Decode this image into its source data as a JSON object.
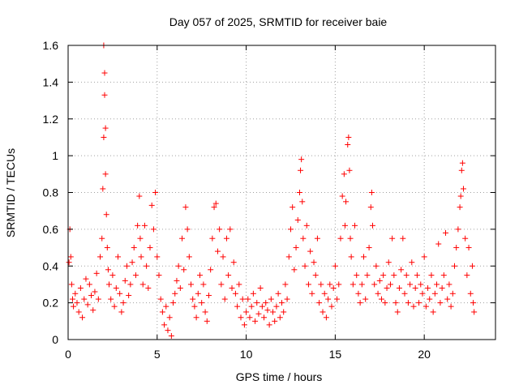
{
  "chart_data": {
    "type": "scatter",
    "title": "Day 057 of 2025, SRMTID for receiver baie",
    "xlabel": "GPS time / hours",
    "ylabel": "SRMTID / TECUs",
    "xlim": [
      0,
      24
    ],
    "ylim": [
      0,
      1.6
    ],
    "x_ticks": [
      0,
      5,
      10,
      15,
      20
    ],
    "x_tick_labels": [
      "0",
      "5",
      "10",
      "15",
      "20"
    ],
    "y_ticks": [
      0,
      0.2,
      0.4,
      0.6,
      0.8,
      1.0,
      1.2,
      1.4,
      1.6
    ],
    "y_tick_labels": [
      "0",
      "0.2",
      "0.4",
      "0.6",
      "0.8",
      "1",
      "1.2",
      "1.4",
      "1.6"
    ],
    "grid": true,
    "marker": "+",
    "color": "#ff0000",
    "series": [
      {
        "name": "SRMTID",
        "points": [
          [
            0.05,
            0.42
          ],
          [
            0.1,
            0.6
          ],
          [
            0.15,
            0.45
          ],
          [
            0.2,
            0.3
          ],
          [
            0.25,
            0.22
          ],
          [
            0.3,
            0.18
          ],
          [
            0.4,
            0.25
          ],
          [
            0.5,
            0.2
          ],
          [
            0.6,
            0.15
          ],
          [
            0.7,
            0.28
          ],
          [
            0.8,
            0.12
          ],
          [
            0.9,
            0.22
          ],
          [
            1.0,
            0.33
          ],
          [
            1.1,
            0.19
          ],
          [
            1.2,
            0.3
          ],
          [
            1.3,
            0.24
          ],
          [
            1.4,
            0.16
          ],
          [
            1.5,
            0.26
          ],
          [
            1.6,
            0.36
          ],
          [
            1.7,
            0.22
          ],
          [
            1.8,
            0.45
          ],
          [
            1.9,
            0.55
          ],
          [
            1.95,
            0.82
          ],
          [
            2.0,
            1.1
          ],
          [
            2.0,
            1.6
          ],
          [
            2.05,
            1.45
          ],
          [
            2.05,
            1.33
          ],
          [
            2.1,
            1.15
          ],
          [
            2.1,
            0.9
          ],
          [
            2.15,
            0.68
          ],
          [
            2.2,
            0.5
          ],
          [
            2.25,
            0.38
          ],
          [
            2.3,
            0.3
          ],
          [
            2.4,
            0.22
          ],
          [
            2.5,
            0.35
          ],
          [
            2.6,
            0.18
          ],
          [
            2.7,
            0.28
          ],
          [
            2.8,
            0.45
          ],
          [
            2.9,
            0.25
          ],
          [
            3.0,
            0.15
          ],
          [
            3.1,
            0.2
          ],
          [
            3.2,
            0.32
          ],
          [
            3.3,
            0.4
          ],
          [
            3.4,
            0.24
          ],
          [
            3.5,
            0.3
          ],
          [
            3.6,
            0.42
          ],
          [
            3.7,
            0.5
          ],
          [
            3.8,
            0.35
          ],
          [
            3.9,
            0.62
          ],
          [
            4.0,
            0.78
          ],
          [
            4.05,
            0.55
          ],
          [
            4.1,
            0.45
          ],
          [
            4.2,
            0.3
          ],
          [
            4.3,
            0.62
          ],
          [
            4.4,
            0.4
          ],
          [
            4.5,
            0.28
          ],
          [
            4.6,
            0.5
          ],
          [
            4.7,
            0.73
          ],
          [
            4.8,
            0.6
          ],
          [
            4.9,
            0.8
          ],
          [
            5.0,
            0.45
          ],
          [
            5.1,
            0.35
          ],
          [
            5.2,
            0.22
          ],
          [
            5.3,
            0.15
          ],
          [
            5.4,
            0.08
          ],
          [
            5.5,
            0.18
          ],
          [
            5.6,
            0.05
          ],
          [
            5.7,
            0.12
          ],
          [
            5.8,
            0.02
          ],
          [
            5.9,
            0.2
          ],
          [
            6.0,
            0.25
          ],
          [
            6.1,
            0.32
          ],
          [
            6.2,
            0.4
          ],
          [
            6.3,
            0.28
          ],
          [
            6.4,
            0.55
          ],
          [
            6.5,
            0.38
          ],
          [
            6.6,
            0.72
          ],
          [
            6.7,
            0.6
          ],
          [
            6.8,
            0.45
          ],
          [
            6.9,
            0.3
          ],
          [
            7.0,
            0.22
          ],
          [
            7.1,
            0.18
          ],
          [
            7.2,
            0.12
          ],
          [
            7.3,
            0.25
          ],
          [
            7.4,
            0.35
          ],
          [
            7.5,
            0.2
          ],
          [
            7.6,
            0.3
          ],
          [
            7.7,
            0.15
          ],
          [
            7.8,
            0.1
          ],
          [
            7.9,
            0.24
          ],
          [
            8.0,
            0.38
          ],
          [
            8.1,
            0.55
          ],
          [
            8.2,
            0.72
          ],
          [
            8.3,
            0.74
          ],
          [
            8.4,
            0.48
          ],
          [
            8.5,
            0.6
          ],
          [
            8.6,
            0.3
          ],
          [
            8.7,
            0.45
          ],
          [
            8.8,
            0.22
          ],
          [
            8.9,
            0.55
          ],
          [
            9.0,
            0.35
          ],
          [
            9.1,
            0.6
          ],
          [
            9.2,
            0.28
          ],
          [
            9.3,
            0.42
          ],
          [
            9.4,
            0.25
          ],
          [
            9.5,
            0.18
          ],
          [
            9.6,
            0.3
          ],
          [
            9.7,
            0.12
          ],
          [
            9.8,
            0.22
          ],
          [
            9.9,
            0.08
          ],
          [
            10.0,
            0.15
          ],
          [
            10.1,
            0.22
          ],
          [
            10.2,
            0.12
          ],
          [
            10.3,
            0.18
          ],
          [
            10.4,
            0.25
          ],
          [
            10.5,
            0.1
          ],
          [
            10.6,
            0.2
          ],
          [
            10.7,
            0.14
          ],
          [
            10.8,
            0.28
          ],
          [
            10.9,
            0.18
          ],
          [
            11.0,
            0.12
          ],
          [
            11.1,
            0.2
          ],
          [
            11.2,
            0.16
          ],
          [
            11.3,
            0.08
          ],
          [
            11.4,
            0.22
          ],
          [
            11.5,
            0.15
          ],
          [
            11.6,
            0.1
          ],
          [
            11.7,
            0.18
          ],
          [
            11.8,
            0.25
          ],
          [
            11.9,
            0.12
          ],
          [
            12.0,
            0.2
          ],
          [
            12.1,
            0.15
          ],
          [
            12.2,
            0.3
          ],
          [
            12.3,
            0.22
          ],
          [
            12.4,
            0.45
          ],
          [
            12.5,
            0.6
          ],
          [
            12.6,
            0.72
          ],
          [
            12.7,
            0.38
          ],
          [
            12.8,
            0.5
          ],
          [
            12.9,
            0.65
          ],
          [
            13.0,
            0.8
          ],
          [
            13.05,
            0.92
          ],
          [
            13.1,
            0.98
          ],
          [
            13.15,
            0.75
          ],
          [
            13.2,
            0.55
          ],
          [
            13.3,
            0.4
          ],
          [
            13.4,
            0.62
          ],
          [
            13.5,
            0.3
          ],
          [
            13.6,
            0.48
          ],
          [
            13.7,
            0.25
          ],
          [
            13.8,
            0.42
          ],
          [
            13.9,
            0.35
          ],
          [
            14.0,
            0.55
          ],
          [
            14.1,
            0.2
          ],
          [
            14.2,
            0.3
          ],
          [
            14.3,
            0.15
          ],
          [
            14.4,
            0.25
          ],
          [
            14.5,
            0.12
          ],
          [
            14.6,
            0.22
          ],
          [
            14.7,
            0.3
          ],
          [
            14.8,
            0.18
          ],
          [
            14.9,
            0.28
          ],
          [
            15.0,
            0.4
          ],
          [
            15.1,
            0.22
          ],
          [
            15.2,
            0.3
          ],
          [
            15.3,
            0.55
          ],
          [
            15.4,
            0.78
          ],
          [
            15.5,
            0.9
          ],
          [
            15.55,
            0.62
          ],
          [
            15.6,
            0.75
          ],
          [
            15.7,
            1.06
          ],
          [
            15.75,
            1.1
          ],
          [
            15.8,
            0.92
          ],
          [
            15.85,
            0.55
          ],
          [
            15.9,
            0.45
          ],
          [
            16.0,
            0.3
          ],
          [
            16.1,
            0.62
          ],
          [
            16.2,
            0.35
          ],
          [
            16.3,
            0.25
          ],
          [
            16.4,
            0.2
          ],
          [
            16.5,
            0.3
          ],
          [
            16.6,
            0.45
          ],
          [
            16.7,
            0.22
          ],
          [
            16.8,
            0.35
          ],
          [
            16.9,
            0.5
          ],
          [
            17.0,
            0.72
          ],
          [
            17.05,
            0.8
          ],
          [
            17.1,
            0.62
          ],
          [
            17.2,
            0.3
          ],
          [
            17.3,
            0.4
          ],
          [
            17.4,
            0.25
          ],
          [
            17.5,
            0.32
          ],
          [
            17.6,
            0.22
          ],
          [
            17.7,
            0.35
          ],
          [
            17.8,
            0.2
          ],
          [
            17.9,
            0.28
          ],
          [
            18.0,
            0.42
          ],
          [
            18.1,
            0.3
          ],
          [
            18.2,
            0.55
          ],
          [
            18.3,
            0.35
          ],
          [
            18.4,
            0.2
          ],
          [
            18.5,
            0.15
          ],
          [
            18.6,
            0.28
          ],
          [
            18.7,
            0.38
          ],
          [
            18.8,
            0.55
          ],
          [
            18.9,
            0.25
          ],
          [
            19.0,
            0.35
          ],
          [
            19.1,
            0.2
          ],
          [
            19.2,
            0.3
          ],
          [
            19.3,
            0.42
          ],
          [
            19.4,
            0.18
          ],
          [
            19.5,
            0.28
          ],
          [
            19.6,
            0.35
          ],
          [
            19.7,
            0.2
          ],
          [
            19.8,
            0.3
          ],
          [
            19.9,
            0.25
          ],
          [
            20.0,
            0.45
          ],
          [
            20.1,
            0.18
          ],
          [
            20.2,
            0.28
          ],
          [
            20.3,
            0.22
          ],
          [
            20.4,
            0.35
          ],
          [
            20.5,
            0.15
          ],
          [
            20.6,
            0.25
          ],
          [
            20.7,
            0.3
          ],
          [
            20.8,
            0.52
          ],
          [
            20.9,
            0.2
          ],
          [
            21.0,
            0.28
          ],
          [
            21.1,
            0.35
          ],
          [
            21.2,
            0.58
          ],
          [
            21.3,
            0.22
          ],
          [
            21.4,
            0.3
          ],
          [
            21.5,
            0.18
          ],
          [
            21.6,
            0.25
          ],
          [
            21.7,
            0.4
          ],
          [
            21.8,
            0.5
          ],
          [
            21.9,
            0.6
          ],
          [
            22.0,
            0.72
          ],
          [
            22.05,
            0.78
          ],
          [
            22.1,
            0.92
          ],
          [
            22.15,
            0.96
          ],
          [
            22.2,
            0.82
          ],
          [
            22.3,
            0.55
          ],
          [
            22.4,
            0.35
          ],
          [
            22.5,
            0.5
          ],
          [
            22.6,
            0.25
          ],
          [
            22.7,
            0.4
          ],
          [
            22.75,
            0.2
          ],
          [
            22.8,
            0.15
          ]
        ]
      }
    ]
  }
}
